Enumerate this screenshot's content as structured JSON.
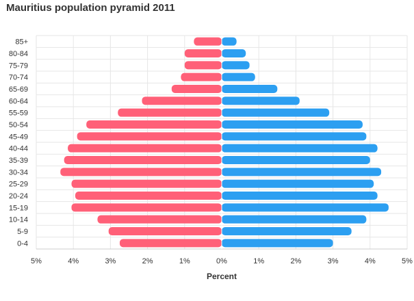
{
  "chart_data": {
    "type": "bar",
    "orientation": "horizontal",
    "title": "Mauritius population pyramid 2011",
    "xlabel": "Percent",
    "ylabel": "",
    "xlim": [
      -5,
      5
    ],
    "x_ticks": [
      -5,
      -4,
      -3,
      -2,
      -1,
      0,
      1,
      2,
      3,
      4,
      5
    ],
    "x_tick_labels": [
      "5%",
      "4%",
      "3%",
      "2%",
      "1%",
      "0%",
      "1%",
      "2%",
      "3%",
      "4%",
      "5%"
    ],
    "categories": [
      "85+",
      "80-84",
      "75-79",
      "70-74",
      "65-69",
      "60-64",
      "55-59",
      "50-54",
      "45-49",
      "40-44",
      "35-39",
      "30-34",
      "25-29",
      "20-24",
      "15-19",
      "10-14",
      "5-9",
      "0-4"
    ],
    "series": [
      {
        "color": "#ff6078",
        "side": "left",
        "values": [
          0.75,
          1.0,
          1.0,
          1.1,
          1.35,
          2.15,
          2.8,
          3.65,
          3.9,
          4.15,
          4.25,
          4.35,
          4.05,
          3.95,
          4.05,
          3.35,
          3.05,
          2.75
        ]
      },
      {
        "color": "#2c9ff1",
        "side": "right",
        "values": [
          0.4,
          0.65,
          0.75,
          0.9,
          1.5,
          2.1,
          2.9,
          3.8,
          3.9,
          4.2,
          4.0,
          4.3,
          4.1,
          4.2,
          4.5,
          3.9,
          3.5,
          3.0
        ]
      }
    ],
    "grid": true,
    "legend": "none"
  }
}
